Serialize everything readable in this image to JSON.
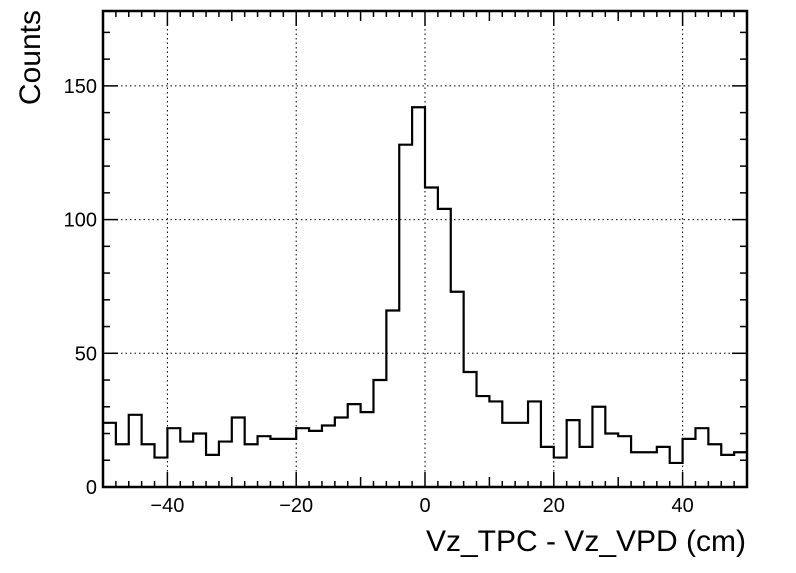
{
  "chart_data": {
    "type": "histogram",
    "title": "",
    "xlabel": "Vz_TPC - Vz_VPD (cm)",
    "ylabel": "Counts",
    "xlim": [
      -50,
      50
    ],
    "ylim": [
      0,
      178
    ],
    "grid": true,
    "x_ticks": [
      -40,
      -20,
      0,
      20,
      40
    ],
    "x_tick_labels": [
      "−40",
      "−20",
      "0",
      "20",
      "40"
    ],
    "y_ticks": [
      0,
      50,
      100,
      150
    ],
    "y_tick_labels": [
      "0",
      "50",
      "100",
      "150"
    ],
    "bin_edges_start": -50,
    "bin_width": 2,
    "values": [
      24,
      16,
      27,
      16,
      11,
      22,
      17,
      20,
      12,
      17,
      26,
      16,
      19,
      18,
      18,
      22,
      21,
      23,
      26,
      31,
      28,
      40,
      66,
      128,
      142,
      112,
      104,
      73,
      43,
      34,
      32,
      24,
      24,
      32,
      15,
      11,
      25,
      15,
      30,
      20,
      19,
      13,
      13,
      15,
      9,
      18,
      22,
      16,
      12,
      13
    ],
    "line_color": "#000000"
  }
}
